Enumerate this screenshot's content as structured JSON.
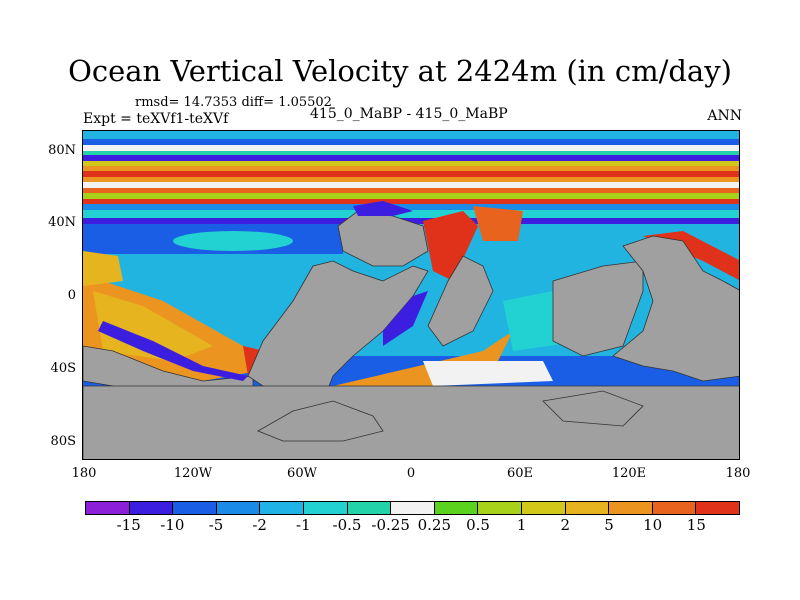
{
  "title": "Ocean Vertical Velocity at 2424m (in cm/day)",
  "stats": "rmsd= 14.7353 diff= 1.05502",
  "experiment": "Expt = teXVf1-teXVf",
  "center_label": "415_0_MaBP - 415_0_MaBP",
  "season": "ANN",
  "y_ticks": [
    "80N",
    "40N",
    "0",
    "40S",
    "80S"
  ],
  "x_ticks": [
    "180",
    "120W",
    "60W",
    "0",
    "60E",
    "120E",
    "180"
  ],
  "colorbar": {
    "colors": [
      "#8c1fd8",
      "#3c1ee0",
      "#1a5ee6",
      "#1a8ce8",
      "#20b4e6",
      "#22d2d2",
      "#22d2a8",
      "#f2f2f2",
      "#5ad21e",
      "#a8d21a",
      "#d2c81a",
      "#e6b41e",
      "#ec9420",
      "#e8641e",
      "#e0321a"
    ],
    "labels": [
      "-15",
      "-10",
      "-5",
      "-2",
      "-1",
      "-0.5",
      "-0.25",
      "0.25",
      "0.5",
      "1",
      "2",
      "5",
      "10",
      "15"
    ]
  }
}
